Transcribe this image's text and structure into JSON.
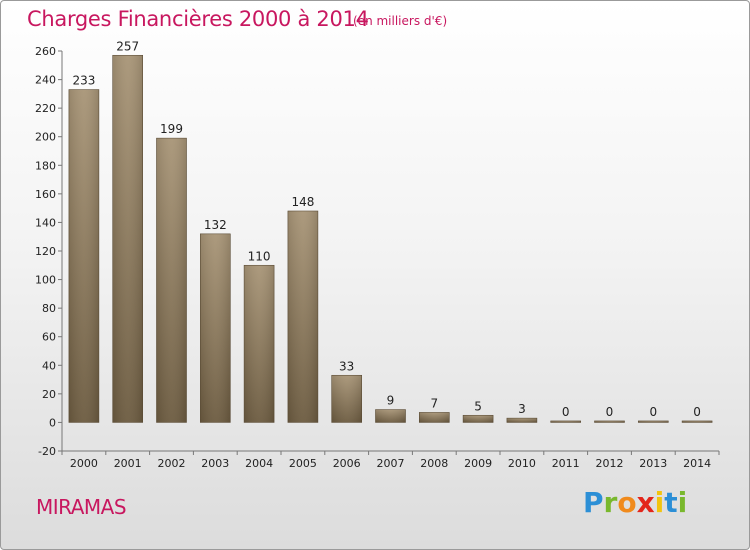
{
  "header": {
    "title": "Charges Financières 2000 à 2014",
    "subtitle": "(en milliers d'€)"
  },
  "footer": {
    "commune": "MIRAMAS",
    "logo_letters": [
      "P",
      "r",
      "o",
      "x",
      "i",
      "t",
      "i"
    ]
  },
  "colors": {
    "accent": "#c8175f",
    "bar_top": "#a89577",
    "bar_bottom": "#6c5b40"
  },
  "chart_data": {
    "type": "bar",
    "title": "Charges Financières 2000 à 2014",
    "subtitle": "(en milliers d'€)",
    "categories": [
      "2000",
      "2001",
      "2002",
      "2003",
      "2004",
      "2005",
      "2006",
      "2007",
      "2008",
      "2009",
      "2010",
      "2011",
      "2012",
      "2013",
      "2014"
    ],
    "values": [
      233,
      257,
      199,
      132,
      110,
      148,
      33,
      9,
      7,
      5,
      3,
      0,
      0,
      0,
      0
    ],
    "ylim": [
      -20,
      260
    ],
    "yticks": [
      -20,
      0,
      20,
      40,
      60,
      80,
      100,
      120,
      140,
      160,
      180,
      200,
      220,
      240,
      260
    ],
    "grid": false,
    "xlabel": "",
    "ylabel": ""
  }
}
